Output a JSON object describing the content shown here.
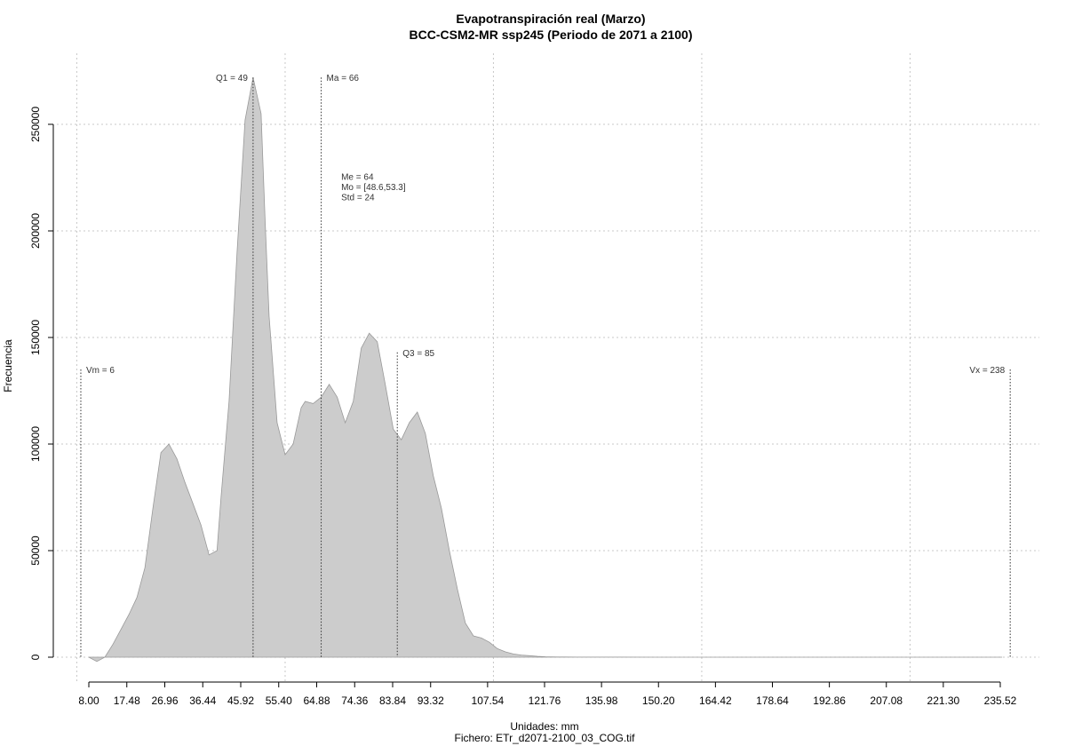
{
  "chart_data": {
    "type": "area",
    "title": "Evapotranspiración real (Marzo)",
    "subtitle": "BCC-CSM2-MR ssp245 (Periodo de 2071 a 2100)",
    "xlabel": "Unidades: mm",
    "xlabel2": "Fichero: ETr_d2071-2100_03_COG.tif",
    "ylabel": "Frecuencia",
    "xlim": [
      3,
      240
    ],
    "ylim": [
      -3000,
      272000
    ],
    "x_ticks": [
      "8.00",
      "17.48",
      "26.96",
      "36.44",
      "45.92",
      "55.40",
      "64.88",
      "74.36",
      "83.84",
      "93.32",
      "107.54",
      "121.76",
      "135.98",
      "150.20",
      "164.42",
      "178.64",
      "192.86",
      "207.08",
      "221.30",
      "235.52"
    ],
    "x_tick_values": [
      8.0,
      17.48,
      26.96,
      36.44,
      45.92,
      55.4,
      64.88,
      74.36,
      83.84,
      93.32,
      107.54,
      121.76,
      135.98,
      150.2,
      164.42,
      178.64,
      192.86,
      207.08,
      221.3,
      235.52
    ],
    "y_ticks": [
      0,
      50000,
      100000,
      150000,
      200000,
      250000
    ],
    "x_grid": [
      5,
      57,
      109,
      161,
      213
    ],
    "grid": true,
    "series": [
      {
        "color": "#cccccc",
        "x": [
          8,
          10,
          12,
          14,
          16,
          18,
          20,
          22,
          24,
          26,
          28,
          30,
          32,
          34,
          36,
          38,
          40,
          41,
          43,
          45,
          47,
          49,
          51,
          52,
          53,
          55,
          57,
          59,
          61,
          62,
          64,
          66,
          68,
          70,
          72,
          74,
          76,
          78,
          80,
          82,
          84,
          86,
          88,
          90,
          92,
          94,
          96,
          98,
          100,
          102,
          104,
          106,
          108,
          110,
          112,
          114,
          116,
          118,
          120,
          122,
          125,
          130,
          140,
          150,
          160,
          180,
          200,
          236
        ],
        "y": [
          0,
          -2000,
          0,
          6000,
          13000,
          20000,
          28000,
          42000,
          70000,
          96000,
          100000,
          93000,
          82000,
          72000,
          62000,
          48000,
          50000,
          75000,
          120000,
          190000,
          252000,
          272000,
          255000,
          205000,
          160000,
          110000,
          95000,
          100000,
          117000,
          120000,
          119000,
          122000,
          128000,
          122000,
          110000,
          120000,
          145000,
          152000,
          148000,
          128000,
          107000,
          102000,
          110000,
          115000,
          105000,
          85000,
          70000,
          50000,
          32000,
          16000,
          10000,
          9000,
          7000,
          4000,
          2500,
          1500,
          1000,
          700,
          400,
          200,
          100,
          50,
          20,
          0,
          0,
          0,
          0,
          0
        ]
      }
    ],
    "vlines": [
      {
        "value": 6,
        "label": "Vm = 6",
        "top": 135000,
        "label_side": "right"
      },
      {
        "value": 49,
        "label": "Q1 = 49",
        "top": 272000,
        "label_side": "left"
      },
      {
        "value": 66,
        "label": "Ma = 66",
        "top": 272000,
        "label_side": "right"
      },
      {
        "value": 85,
        "label": "Q3 = 85",
        "top": 143000,
        "label_side": "right"
      },
      {
        "value": 238,
        "label": "Vx = 238",
        "top": 135000,
        "label_side": "left"
      }
    ],
    "stats": [
      "Me = 64",
      "Mo = [48.6,53.3]",
      "Std = 24"
    ],
    "stats_anchor": {
      "x": 71,
      "y": 224000
    }
  }
}
